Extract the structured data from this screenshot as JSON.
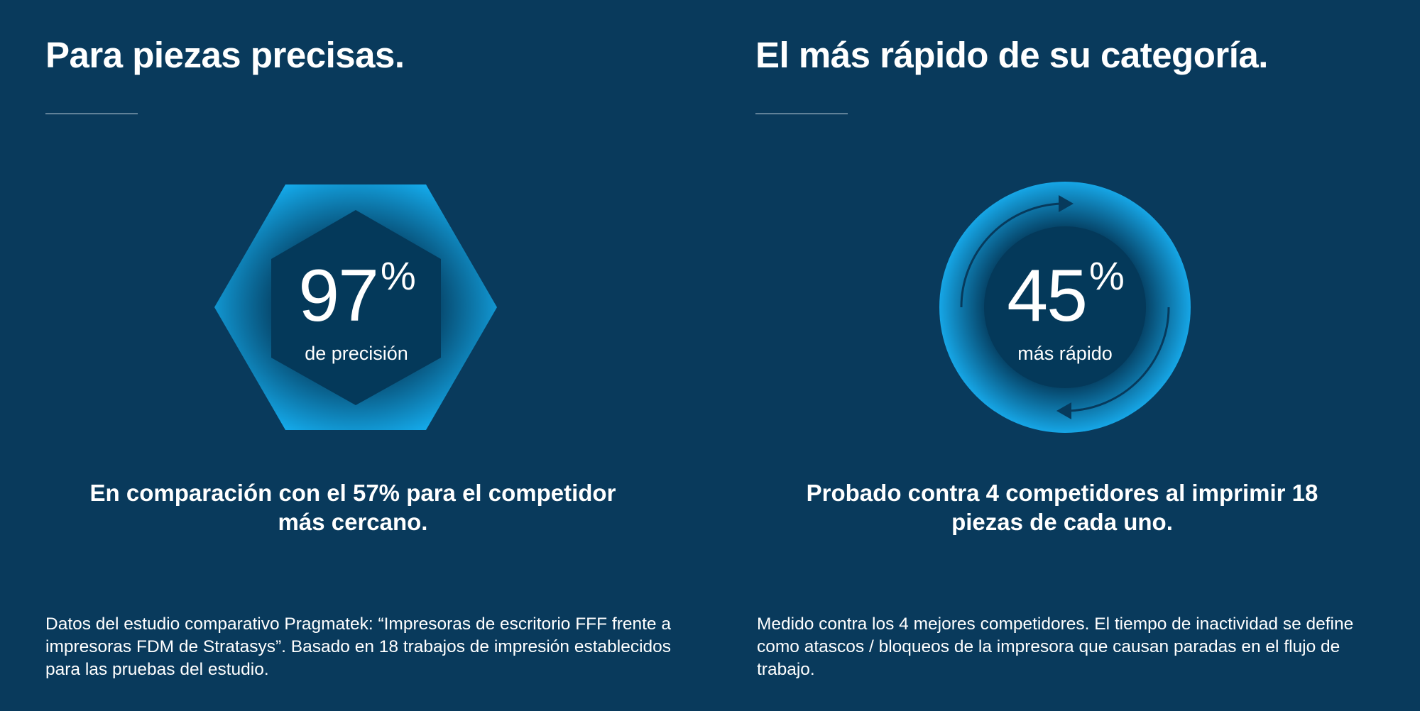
{
  "left": {
    "title": "Para piezas precisas.",
    "stat_value": "97",
    "stat_unit": "%",
    "stat_caption": "de precisión",
    "stat_percent": 97,
    "subheading": "En comparación con el 57% para el competidor más cercano.",
    "footnote": "Datos del estudio comparativo Pragmatek: “Impresoras de escritorio FFF frente a impresoras FDM de Stratasys”. Basado en 18 trabajos de impresión establecidos para las pruebas del estudio."
  },
  "right": {
    "title": "El más rápido de su categoría.",
    "stat_value": "45",
    "stat_unit": "%",
    "stat_caption": "más rápido",
    "stat_percent": 45,
    "subheading": "Probado contra 4 competidores al imprimir 18 piezas de cada uno.",
    "footnote": "Medido contra los 4 mejores competidores. El tiempo de inactividad se define como atascos / bloqueos de la impresora que causan paradas en el flujo de trabajo."
  },
  "colors": {
    "background": "#093a5c",
    "accent": "#14a3e3",
    "inner": "#043a5c"
  }
}
